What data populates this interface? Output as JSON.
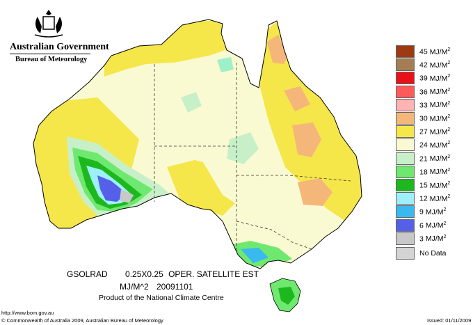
{
  "header": {
    "org_line1": "Australian Government",
    "org_line2": "Bureau of Meteorology"
  },
  "map": {
    "product_code": "GSOLRAD",
    "grid": "0.25X0.25",
    "source": "OPER. SATELLITE EST",
    "units": "MJ/M^2",
    "date": "20091101",
    "attribution": "Product of the National Climate Centre"
  },
  "legend": {
    "items": [
      {
        "value": "45",
        "unit": "MJ/M",
        "color": "#9e3a12"
      },
      {
        "value": "42",
        "unit": "MJ/M",
        "color": "#a67c52"
      },
      {
        "value": "39",
        "unit": "MJ/M",
        "color": "#e8111a"
      },
      {
        "value": "36",
        "unit": "MJ/M",
        "color": "#ff5a5a"
      },
      {
        "value": "33",
        "unit": "MJ/M",
        "color": "#ffb3b3"
      },
      {
        "value": "30",
        "unit": "MJ/M",
        "color": "#f5b67a"
      },
      {
        "value": "27",
        "unit": "MJ/M",
        "color": "#f5e64a"
      },
      {
        "value": "24",
        "unit": "MJ/M",
        "color": "#fafad2"
      },
      {
        "value": "21",
        "unit": "MJ/M",
        "color": "#c8f0c8"
      },
      {
        "value": "18",
        "unit": "MJ/M",
        "color": "#6fe86f"
      },
      {
        "value": "15",
        "unit": "MJ/M",
        "color": "#1db81d"
      },
      {
        "value": "12",
        "unit": "MJ/M",
        "color": "#9ef0f8"
      },
      {
        "value": "9",
        "unit": "MJ/M",
        "color": "#3ab8f0"
      },
      {
        "value": "6",
        "unit": "MJ/M",
        "color": "#5560e8"
      },
      {
        "value": "3",
        "unit": "MJ/M",
        "color": "#c8c8c8"
      }
    ],
    "superscript": "2",
    "no_data_label": "No Data",
    "no_data_color": "#d4d4d4"
  },
  "footer": {
    "url": "http://www.bom.gov.au",
    "copyright": "© Commonwealth of Australia 2009, Australian Bureau of Meteorology",
    "issued": "Issued: 01/11/2009"
  }
}
